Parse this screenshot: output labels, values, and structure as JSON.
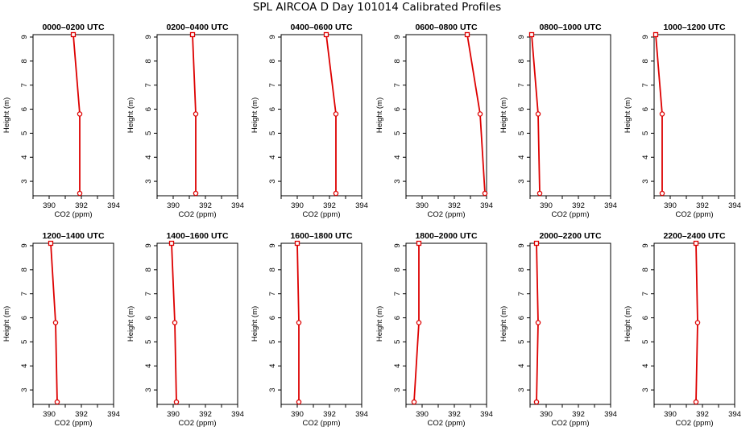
{
  "figure": {
    "title": "SPL AIRCOA D  Day 101014  Calibrated Profiles"
  },
  "colors": {
    "series": "#dd0000",
    "axis": "#000000"
  },
  "chart_data": [
    {
      "type": "line",
      "title": "0000–0200 UTC",
      "xlabel": "CO2 (ppm)",
      "ylabel": "Height (m)",
      "xlim": [
        389,
        394
      ],
      "ylim": [
        2.4,
        9.1
      ],
      "xticks": [
        390,
        392,
        394
      ],
      "yticks": [
        3,
        4,
        5,
        6,
        7,
        8,
        9
      ],
      "series": [
        {
          "x": [
            391.5,
            391.9,
            391.9
          ],
          "y": [
            9.1,
            5.8,
            2.5
          ]
        }
      ]
    },
    {
      "type": "line",
      "title": "0200–0400 UTC",
      "xlabel": "CO2 (ppm)",
      "ylabel": "Height (m)",
      "xlim": [
        389,
        394
      ],
      "ylim": [
        2.4,
        9.1
      ],
      "xticks": [
        390,
        392,
        394
      ],
      "yticks": [
        3,
        4,
        5,
        6,
        7,
        8,
        9
      ],
      "series": [
        {
          "x": [
            391.2,
            391.4,
            391.4
          ],
          "y": [
            9.1,
            5.8,
            2.5
          ]
        }
      ]
    },
    {
      "type": "line",
      "title": "0400–0600 UTC",
      "xlabel": "CO2 (ppm)",
      "ylabel": "Height (m)",
      "xlim": [
        389,
        394
      ],
      "ylim": [
        2.4,
        9.1
      ],
      "xticks": [
        390,
        392,
        394
      ],
      "yticks": [
        3,
        4,
        5,
        6,
        7,
        8,
        9
      ],
      "series": [
        {
          "x": [
            391.8,
            392.4,
            392.4
          ],
          "y": [
            9.1,
            5.8,
            2.5
          ]
        }
      ]
    },
    {
      "type": "line",
      "title": "0600–0800 UTC",
      "xlabel": "CO2 (ppm)",
      "ylabel": "Height (m)",
      "xlim": [
        389,
        394
      ],
      "ylim": [
        2.4,
        9.1
      ],
      "xticks": [
        390,
        392,
        394
      ],
      "yticks": [
        3,
        4,
        5,
        6,
        7,
        8,
        9
      ],
      "series": [
        {
          "x": [
            392.8,
            393.6,
            393.9
          ],
          "y": [
            9.1,
            5.8,
            2.5
          ]
        }
      ]
    },
    {
      "type": "line",
      "title": "0800–1000 UTC",
      "xlabel": "CO2 (ppm)",
      "ylabel": "Height (m)",
      "xlim": [
        389,
        394
      ],
      "ylim": [
        2.4,
        9.1
      ],
      "xticks": [
        390,
        392,
        394
      ],
      "yticks": [
        3,
        4,
        5,
        6,
        7,
        8,
        9
      ],
      "series": [
        {
          "x": [
            389.1,
            389.5,
            389.6
          ],
          "y": [
            9.1,
            5.8,
            2.5
          ]
        }
      ]
    },
    {
      "type": "line",
      "title": "1000–1200 UTC",
      "xlabel": "CO2 (ppm)",
      "ylabel": "Height (m)",
      "xlim": [
        389,
        394
      ],
      "ylim": [
        2.4,
        9.1
      ],
      "xticks": [
        390,
        392,
        394
      ],
      "yticks": [
        3,
        4,
        5,
        6,
        7,
        8,
        9
      ],
      "series": [
        {
          "x": [
            389.1,
            389.5,
            389.5
          ],
          "y": [
            9.1,
            5.8,
            2.5
          ]
        }
      ]
    },
    {
      "type": "line",
      "title": "1200–1400 UTC",
      "xlabel": "CO2 (ppm)",
      "ylabel": "Height (m)",
      "xlim": [
        389,
        394
      ],
      "ylim": [
        2.4,
        9.1
      ],
      "xticks": [
        390,
        392,
        394
      ],
      "yticks": [
        3,
        4,
        5,
        6,
        7,
        8,
        9
      ],
      "series": [
        {
          "x": [
            390.1,
            390.4,
            390.5
          ],
          "y": [
            9.1,
            5.8,
            2.5
          ]
        }
      ]
    },
    {
      "type": "line",
      "title": "1400–1600 UTC",
      "xlabel": "CO2 (ppm)",
      "ylabel": "Height (m)",
      "xlim": [
        389,
        394
      ],
      "ylim": [
        2.4,
        9.1
      ],
      "xticks": [
        390,
        392,
        394
      ],
      "yticks": [
        3,
        4,
        5,
        6,
        7,
        8,
        9
      ],
      "series": [
        {
          "x": [
            389.9,
            390.1,
            390.2
          ],
          "y": [
            9.1,
            5.8,
            2.5
          ]
        }
      ]
    },
    {
      "type": "line",
      "title": "1600–1800 UTC",
      "xlabel": "CO2 (ppm)",
      "ylabel": "Height (m)",
      "xlim": [
        389,
        394
      ],
      "ylim": [
        2.4,
        9.1
      ],
      "xticks": [
        390,
        392,
        394
      ],
      "yticks": [
        3,
        4,
        5,
        6,
        7,
        8,
        9
      ],
      "series": [
        {
          "x": [
            390.0,
            390.1,
            390.1
          ],
          "y": [
            9.1,
            5.8,
            2.5
          ]
        }
      ]
    },
    {
      "type": "line",
      "title": "1800–2000 UTC",
      "xlabel": "CO2 (ppm)",
      "ylabel": "Height (m)",
      "xlim": [
        389,
        394
      ],
      "ylim": [
        2.4,
        9.1
      ],
      "xticks": [
        390,
        392,
        394
      ],
      "yticks": [
        3,
        4,
        5,
        6,
        7,
        8,
        9
      ],
      "series": [
        {
          "x": [
            389.8,
            389.8,
            389.5
          ],
          "y": [
            9.1,
            5.8,
            2.5
          ]
        }
      ]
    },
    {
      "type": "line",
      "title": "2000–2200 UTC",
      "xlabel": "CO2 (ppm)",
      "ylabel": "Height (m)",
      "xlim": [
        389,
        394
      ],
      "ylim": [
        2.4,
        9.1
      ],
      "xticks": [
        390,
        392,
        394
      ],
      "yticks": [
        3,
        4,
        5,
        6,
        7,
        8,
        9
      ],
      "series": [
        {
          "x": [
            389.4,
            389.5,
            389.4
          ],
          "y": [
            9.1,
            5.8,
            2.5
          ]
        }
      ]
    },
    {
      "type": "line",
      "title": "2200–2400 UTC",
      "xlabel": "CO2 (ppm)",
      "ylabel": "Height (m)",
      "xlim": [
        389,
        394
      ],
      "ylim": [
        2.4,
        9.1
      ],
      "xticks": [
        390,
        392,
        394
      ],
      "yticks": [
        3,
        4,
        5,
        6,
        7,
        8,
        9
      ],
      "series": [
        {
          "x": [
            391.6,
            391.7,
            391.6
          ],
          "y": [
            9.1,
            5.8,
            2.5
          ]
        }
      ]
    }
  ]
}
